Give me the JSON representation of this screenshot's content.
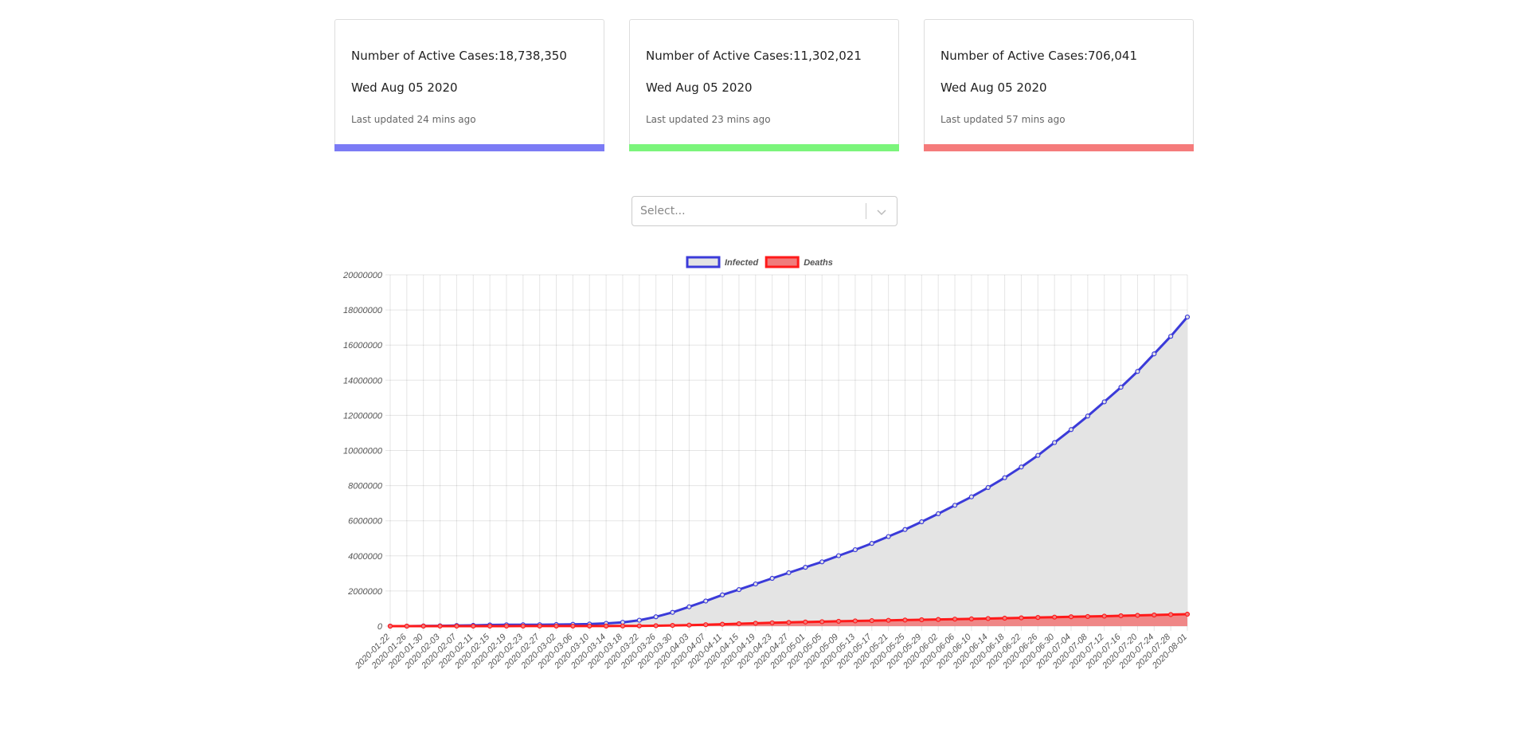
{
  "cards": [
    {
      "text": "Number of Active Cases:18,738,350",
      "date": "Wed Aug 05 2020",
      "updated": "Last updated 24 mins ago",
      "color": "#7b7bf5"
    },
    {
      "text": "Number of Active Cases:11,302,021",
      "date": "Wed Aug 05 2020",
      "updated": "Last updated 23 mins ago",
      "color": "#7bf57b"
    },
    {
      "text": "Number of Active Cases:706,041",
      "date": "Wed Aug 05 2020",
      "updated": "Last updated 57 mins ago",
      "color": "#f57b7b"
    }
  ],
  "select": {
    "placeholder": "Select..."
  },
  "chart_data": {
    "type": "line",
    "categories": [
      "2020-01-22",
      "2020-01-26",
      "2020-01-30",
      "2020-02-03",
      "2020-02-07",
      "2020-02-11",
      "2020-02-15",
      "2020-02-19",
      "2020-02-23",
      "2020-02-27",
      "2020-03-02",
      "2020-03-06",
      "2020-03-10",
      "2020-03-14",
      "2020-03-18",
      "2020-03-22",
      "2020-03-26",
      "2020-03-30",
      "2020-04-03",
      "2020-04-07",
      "2020-04-11",
      "2020-04-15",
      "2020-04-19",
      "2020-04-23",
      "2020-04-27",
      "2020-05-01",
      "2020-05-05",
      "2020-05-09",
      "2020-05-13",
      "2020-05-17",
      "2020-05-21",
      "2020-05-25",
      "2020-05-29",
      "2020-06-02",
      "2020-06-06",
      "2020-06-10",
      "2020-06-14",
      "2020-06-18",
      "2020-06-22",
      "2020-06-26",
      "2020-06-30",
      "2020-07-04",
      "2020-07-08",
      "2020-07-12",
      "2020-07-16",
      "2020-07-20",
      "2020-07-24",
      "2020-07-28",
      "2020-08-01"
    ],
    "series": [
      {
        "name": "Infected",
        "color": "#3b3bd9",
        "fill": "#e4e4e4",
        "values": [
          555,
          2100,
          9900,
          20000,
          34000,
          45000,
          69000,
          76000,
          79000,
          83000,
          90000,
          102000,
          119000,
          157000,
          219000,
          337000,
          532000,
          783000,
          1100000,
          1430000,
          1780000,
          2080000,
          2400000,
          2720000,
          3040000,
          3350000,
          3660000,
          4010000,
          4350000,
          4710000,
          5100000,
          5500000,
          5940000,
          6400000,
          6880000,
          7360000,
          7890000,
          8450000,
          9060000,
          9720000,
          10450000,
          11190000,
          11960000,
          12770000,
          13600000,
          14500000,
          15500000,
          16500000,
          17600000
        ]
      },
      {
        "name": "Deaths",
        "color": "#ff1a1a",
        "fill": "#f07c7c",
        "values": [
          17,
          56,
          213,
          427,
          720,
          1100,
          1520,
          2120,
          2460,
          2800,
          3100,
          3460,
          4260,
          5800,
          8800,
          14600,
          24000,
          40000,
          59000,
          82000,
          108000,
          137000,
          165000,
          191000,
          211000,
          234000,
          252000,
          275000,
          297000,
          315000,
          332000,
          347000,
          363000,
          380000,
          400000,
          413000,
          433000,
          452000,
          471000,
          493000,
          514000,
          534000,
          548000,
          569000,
          590000,
          613000,
          635000,
          659000,
          680000
        ]
      }
    ],
    "ylim": [
      0,
      20000000
    ],
    "yticks": [
      0,
      2000000,
      4000000,
      6000000,
      8000000,
      10000000,
      12000000,
      14000000,
      16000000,
      18000000,
      20000000
    ],
    "grid": true,
    "legend": "top"
  }
}
